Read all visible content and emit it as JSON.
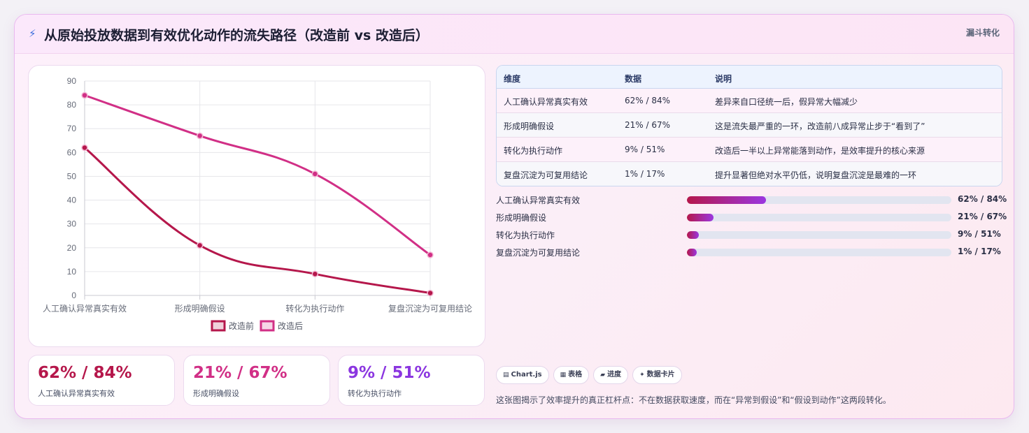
{
  "header": {
    "icon": "lightning-icon",
    "title": "从原始投放数据到有效优化动作的流失路径（改造前 vs 改造后）",
    "tag": "漏斗转化"
  },
  "chart_data": {
    "type": "line",
    "categories": [
      "人工确认异常真实有效",
      "形成明确假设",
      "转化为执行动作",
      "复盘沉淀为可复用结论"
    ],
    "series": [
      {
        "name": "改造前",
        "values": [
          62,
          21,
          9,
          1
        ],
        "color": "#b5174b"
      },
      {
        "name": "改造后",
        "values": [
          84,
          67,
          51,
          17
        ],
        "color": "#d12f86"
      }
    ],
    "ylim": [
      0,
      90
    ],
    "yticks": [
      0,
      10,
      20,
      30,
      40,
      50,
      60,
      70,
      80,
      90
    ],
    "grid": true,
    "legend": "bottom"
  },
  "kpis": [
    {
      "value": "62% / 84%",
      "label": "人工确认异常真实有效",
      "color": "#b5174b"
    },
    {
      "value": "21% / 67%",
      "label": "形成明确假设",
      "color": "#d12f86"
    },
    {
      "value": "9% / 51%",
      "label": "转化为执行动作",
      "color": "#8b36e0"
    }
  ],
  "table": {
    "headers": [
      "维度",
      "数据",
      "说明"
    ],
    "rows": [
      {
        "dim": "人工确认异常真实有效",
        "data": "62% / 84%",
        "desc": "差异来自口径统一后，假异常大幅减少"
      },
      {
        "dim": "形成明确假设",
        "data": "21% / 67%",
        "desc": "这是流失最严重的一环，改造前八成异常止步于“看到了”"
      },
      {
        "dim": "转化为执行动作",
        "data": "9% / 51%",
        "desc": "改造后一半以上异常能落到动作，是效率提升的核心来源"
      },
      {
        "dim": "复盘沉淀为可复用结论",
        "data": "1% / 17%",
        "desc": "提升显著但绝对水平仍低，说明复盘沉淀是最难的一环"
      }
    ]
  },
  "progress": [
    {
      "label": "人工确认异常真实有效",
      "value": "62% / 84%",
      "fill": 0.3
    },
    {
      "label": "形成明确假设",
      "value": "21% / 67%",
      "fill": 0.1
    },
    {
      "label": "转化为执行动作",
      "value": "9% / 51%",
      "fill": 0.045
    },
    {
      "label": "复盘沉淀为可复用结论",
      "value": "1% / 17%",
      "fill": 0.038
    }
  ],
  "chips": [
    {
      "icon": "chart-icon",
      "glyph": "▤",
      "label": "Chart.js"
    },
    {
      "icon": "table-icon",
      "glyph": "▦",
      "label": "表格"
    },
    {
      "icon": "progress-icon",
      "glyph": "▰",
      "label": "进度"
    },
    {
      "icon": "card-icon",
      "glyph": "✦",
      "label": "数据卡片"
    }
  ],
  "note": "这张图揭示了效率提升的真正杠杆点：不在数据获取速度，而在“异常到假设”和“假设到动作”这两段转化。"
}
